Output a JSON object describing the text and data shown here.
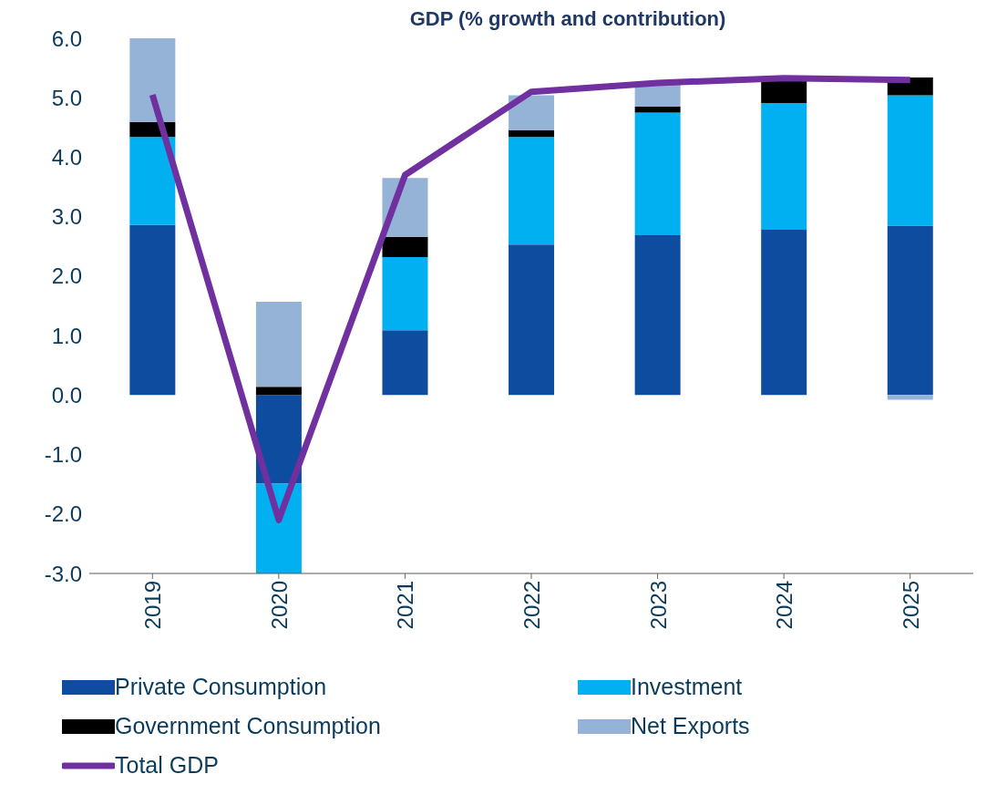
{
  "chart_data": {
    "type": "bar",
    "title": "GDP (% growth and contribution)",
    "categories": [
      "2019",
      "2020",
      "2021",
      "2022",
      "2023",
      "2024",
      "2025"
    ],
    "stacked": true,
    "series": [
      {
        "name": "Private Consumption",
        "color": "#0d4c9e",
        "values": [
          2.86,
          -1.49,
          1.09,
          2.53,
          2.69,
          2.78,
          2.85
        ]
      },
      {
        "name": "Investment",
        "color": "#00b0f0",
        "values": [
          1.48,
          -1.58,
          1.23,
          1.81,
          2.06,
          2.13,
          2.19
        ]
      },
      {
        "name": "Government Consumption",
        "color": "#000000",
        "values": [
          0.25,
          0.14,
          0.34,
          0.11,
          0.1,
          0.37,
          0.3
        ]
      },
      {
        "name": "Net Exports",
        "color": "#95b3d7",
        "values": [
          1.41,
          1.43,
          0.99,
          0.59,
          0.4,
          null,
          -0.08
        ]
      },
      {
        "name": "Total GDP",
        "type": "line",
        "color": "#7030a0",
        "values": [
          5.05,
          -2.1,
          3.7,
          5.1,
          5.25,
          5.33,
          5.3
        ]
      }
    ],
    "ylim": [
      -3,
      6
    ],
    "yticks": [
      {
        "value": -3,
        "label": "-3.0"
      },
      {
        "value": -2,
        "label": "-2.0"
      },
      {
        "value": -1,
        "label": "-1.0"
      },
      {
        "value": 0,
        "label": "0.0"
      },
      {
        "value": 1,
        "label": "1.0"
      },
      {
        "value": 2,
        "label": "2.0"
      },
      {
        "value": 3,
        "label": "3.0"
      },
      {
        "value": 4,
        "label": "4.0"
      },
      {
        "value": 5,
        "label": "5.0"
      },
      {
        "value": 6,
        "label": "6.0"
      }
    ],
    "grid": false,
    "legend": "bottom",
    "marker": "none",
    "line_style": "solid"
  }
}
